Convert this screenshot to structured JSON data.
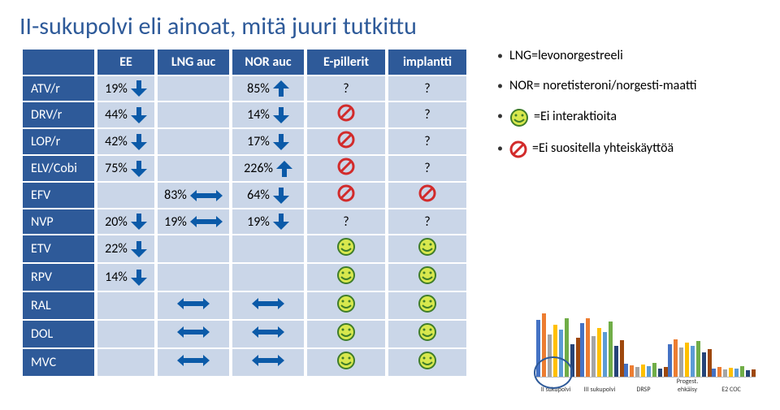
{
  "title": "II-sukupolvi eli ainoat, mitä juuri tutkittu",
  "columns": [
    "",
    "EE",
    "LNG auc",
    "NOR auc",
    "E-pillerit",
    "implantti"
  ],
  "rows": [
    {
      "label": "ATV/r",
      "cells": [
        "19%↓",
        "",
        "85%↑",
        "?",
        "?"
      ]
    },
    {
      "label": "DRV/r",
      "cells": [
        "44%↓",
        "",
        "14%↓",
        "ban",
        "?"
      ]
    },
    {
      "label": "LOP/r",
      "cells": [
        "42%↓",
        "",
        "17%↓",
        "ban",
        "?"
      ]
    },
    {
      "label": "ELV/Cobi",
      "cells": [
        "75%↓",
        "",
        "226%↑",
        "ban",
        "?"
      ]
    },
    {
      "label": "EFV",
      "cells": [
        "",
        "83%↔",
        "64%↓",
        "ban",
        "ban"
      ]
    },
    {
      "label": "NVP",
      "cells": [
        "20%↓",
        "19%↔",
        "19%↓",
        "?",
        "?"
      ]
    },
    {
      "label": "ETV",
      "cells": [
        "22%↓",
        "",
        "",
        "smile",
        "smile"
      ]
    },
    {
      "label": "RPV",
      "cells": [
        "14%↓",
        "",
        "",
        "smile",
        "smile"
      ]
    },
    {
      "label": "RAL",
      "cells": [
        "",
        "↔",
        "↔",
        "smile",
        "smile"
      ]
    },
    {
      "label": "DOL",
      "cells": [
        "",
        "↔",
        "↔",
        "smile",
        "smile"
      ]
    },
    {
      "label": "MVC",
      "cells": [
        "",
        "↔",
        "↔",
        "smile",
        "smile"
      ]
    }
  ],
  "icon_colors": {
    "arrow_down": "#0b5aa8",
    "arrow_up": "#0b5aa8",
    "arrow_eq": "#0b5aa8",
    "ban": "#d22b2b",
    "smile_face": "#d8e84d",
    "smile_out": "#3f7d2a"
  },
  "bullets": [
    {
      "text": "LNG=levonorgestreeli"
    },
    {
      "text": "NOR= noretisteroni/norgesti-maatti"
    },
    {
      "icon": "smile",
      "text": "=Ei interaktioita"
    },
    {
      "icon": "ban",
      "text": "=Ei suositella yhteiskäyttöä"
    }
  ],
  "mini_chart": {
    "categories": [
      "II sukupolvi",
      "III sukupolvi",
      "DRSP",
      "Progest. ehkäisy",
      "E2 COC"
    ],
    "series_colors": [
      "#4472c4",
      "#ed7d31",
      "#a5a5a5",
      "#ffc000",
      "#5b9bd5",
      "#70ad47",
      "#264478",
      "#9e480e"
    ],
    "values": [
      [
        70,
        78,
        52,
        64,
        58,
        72,
        40,
        48
      ],
      [
        66,
        72,
        50,
        60,
        55,
        68,
        38,
        45
      ],
      [
        16,
        14,
        12,
        15,
        13,
        17,
        10,
        12
      ],
      [
        40,
        46,
        36,
        42,
        38,
        44,
        30,
        34
      ],
      [
        10,
        12,
        9,
        11,
        10,
        13,
        8,
        9
      ]
    ],
    "ymax": 100,
    "highlight_group": 0,
    "highlight_color": "#2e5a99"
  }
}
